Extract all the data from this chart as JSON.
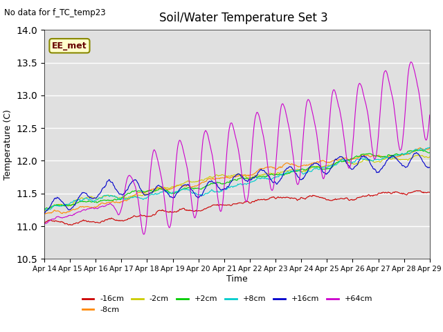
{
  "title": "Soil/Water Temperature Set 3",
  "subtitle": "No data for f_TC_temp23",
  "xlabel": "Time",
  "ylabel": "Temperature (C)",
  "ylim": [
    10.5,
    14.0
  ],
  "xlim": [
    0,
    15
  ],
  "annotation": "EE_met",
  "background_color": "#ffffff",
  "plot_bg_color": "#e0e0e0",
  "series": [
    {
      "label": "-16cm",
      "color": "#cc0000",
      "base_start": 11.07,
      "base_end": 11.58,
      "noise_scale": 0.006,
      "daily_amp": 0.0
    },
    {
      "label": "-8cm",
      "color": "#ff8800",
      "base_start": 11.22,
      "base_end": 11.82,
      "noise_scale": 0.006,
      "daily_amp": 0.0
    },
    {
      "label": "-2cm",
      "color": "#cccc00",
      "base_start": 11.25,
      "base_end": 11.96,
      "noise_scale": 0.006,
      "daily_amp": 0.0
    },
    {
      "label": "+2cm",
      "color": "#00cc00",
      "base_start": 11.27,
      "base_end": 12.02,
      "noise_scale": 0.006,
      "daily_amp": 0.0
    },
    {
      "label": "+8cm",
      "color": "#00cccc",
      "base_start": 11.29,
      "base_end": 12.2,
      "noise_scale": 0.007,
      "daily_amp": 0.0
    },
    {
      "label": "+16cm",
      "color": "#0000cc",
      "base_start": 11.3,
      "base_end": 12.42,
      "noise_scale": 0.008,
      "daily_amp": 0.08
    },
    {
      "label": "+64cm",
      "color": "#cc00cc",
      "base_start": 11.05,
      "base_end": 13.1,
      "noise_scale": 0.005,
      "daily_amp": 0.6
    }
  ],
  "n_points": 720,
  "days": 15,
  "tick_labels": [
    "Apr 14",
    "Apr 15",
    "Apr 16",
    "Apr 17",
    "Apr 18",
    "Apr 19",
    "Apr 20",
    "Apr 21",
    "Apr 22",
    "Apr 23",
    "Apr 24",
    "Apr 25",
    "Apr 26",
    "Apr 27",
    "Apr 28",
    "Apr 29"
  ]
}
